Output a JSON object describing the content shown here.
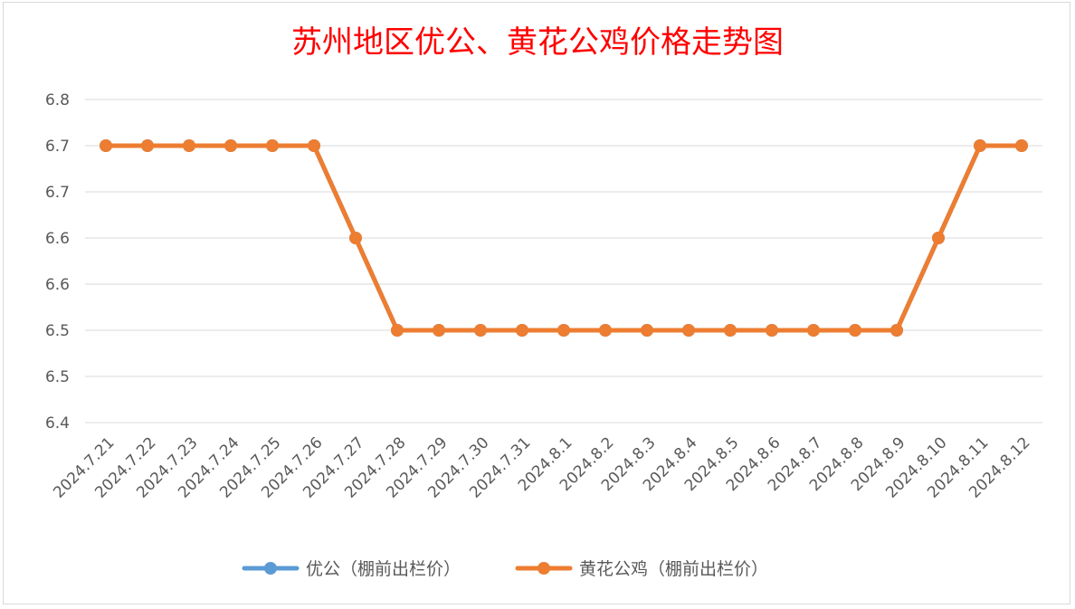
{
  "chart_data": {
    "type": "line",
    "title": "苏州地区优公、黄花公鸡价格走势图",
    "categories": [
      "2024.7.21",
      "2024.7.22",
      "2024.7.23",
      "2024.7.24",
      "2024.7.25",
      "2024.7.26",
      "2024.7.27",
      "2024.7.28",
      "2024.7.29",
      "2024.7.30",
      "2024.7.31",
      "2024.8.1",
      "2024.8.2",
      "2024.8.3",
      "2024.8.4",
      "2024.8.5",
      "2024.8.6",
      "2024.8.7",
      "2024.8.8",
      "2024.8.9",
      "2024.8.10",
      "2024.8.11",
      "2024.8.12"
    ],
    "y_ticks": [
      "6.4",
      "6.5",
      "6.5",
      "6.6",
      "6.6",
      "6.7",
      "6.7",
      "6.8"
    ],
    "ylim": [
      6.4,
      6.75
    ],
    "grid": true,
    "legend_position": "bottom",
    "series": [
      {
        "name": "优公（棚前出栏价）",
        "color": "#5b9bd5",
        "values": [
          6.7,
          6.7,
          6.7,
          6.7,
          6.7,
          6.7,
          6.6,
          6.5,
          6.5,
          6.5,
          6.5,
          6.5,
          6.5,
          6.5,
          6.5,
          6.5,
          6.5,
          6.5,
          6.5,
          6.5,
          6.6,
          6.7,
          6.7
        ]
      },
      {
        "name": "黄花公鸡（棚前出栏价）",
        "color": "#ed7d31",
        "values": [
          6.7,
          6.7,
          6.7,
          6.7,
          6.7,
          6.7,
          6.6,
          6.5,
          6.5,
          6.5,
          6.5,
          6.5,
          6.5,
          6.5,
          6.5,
          6.5,
          6.5,
          6.5,
          6.5,
          6.5,
          6.6,
          6.7,
          6.7
        ]
      }
    ]
  }
}
